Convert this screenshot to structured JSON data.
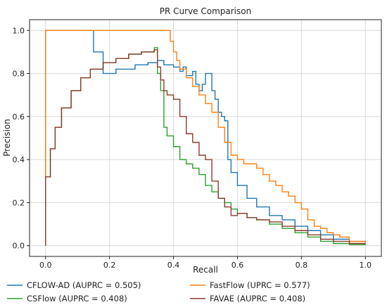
{
  "chart_data": {
    "type": "line",
    "title": "PR Curve Comparison",
    "xlabel": "Recall",
    "ylabel": "Precision",
    "xlim": [
      -0.05,
      1.05
    ],
    "ylim": [
      -0.05,
      1.05
    ],
    "xticks": [
      0.0,
      0.2,
      0.4,
      0.6,
      0.8,
      1.0
    ],
    "yticks": [
      0.0,
      0.2,
      0.4,
      0.6,
      0.8,
      1.0
    ],
    "grid": true,
    "legend_position": "bottom, outside plot",
    "series": [
      {
        "name": "CFLOW-AD (AUPRC = 0.505)",
        "color": "#1f77b4",
        "step": true,
        "x": [
          0.0,
          0.0,
          0.15,
          0.15,
          0.18,
          0.18,
          0.22,
          0.28,
          0.32,
          0.35,
          0.37,
          0.4,
          0.42,
          0.43,
          0.44,
          0.46,
          0.47,
          0.48,
          0.49,
          0.5,
          0.52,
          0.53,
          0.54,
          0.55,
          0.56,
          0.57,
          0.58,
          0.6,
          0.63,
          0.66,
          0.7,
          0.74,
          0.78,
          0.82,
          0.86,
          0.9,
          0.95,
          1.0
        ],
        "y": [
          0.0,
          1.0,
          1.0,
          0.9,
          0.9,
          0.8,
          0.82,
          0.84,
          0.85,
          0.86,
          0.84,
          0.83,
          0.81,
          0.83,
          0.79,
          0.81,
          0.75,
          0.72,
          0.75,
          0.8,
          0.72,
          0.68,
          0.62,
          0.6,
          0.58,
          0.4,
          0.34,
          0.28,
          0.22,
          0.18,
          0.14,
          0.12,
          0.09,
          0.07,
          0.05,
          0.03,
          0.02,
          0.01
        ]
      },
      {
        "name": "FastFlow (UPRC = 0.577)",
        "color": "#ff7f0e",
        "step": true,
        "x": [
          0.0,
          0.0,
          0.39,
          0.39,
          0.4,
          0.41,
          0.42,
          0.44,
          0.46,
          0.48,
          0.5,
          0.52,
          0.54,
          0.56,
          0.58,
          0.6,
          0.62,
          0.64,
          0.66,
          0.68,
          0.7,
          0.72,
          0.74,
          0.76,
          0.78,
          0.8,
          0.82,
          0.84,
          0.86,
          0.88,
          0.9,
          0.92,
          0.95,
          1.0
        ],
        "y": [
          0.0,
          1.0,
          1.0,
          0.95,
          0.9,
          0.86,
          0.82,
          0.78,
          0.74,
          0.7,
          0.66,
          0.62,
          0.55,
          0.48,
          0.42,
          0.4,
          0.38,
          0.38,
          0.36,
          0.33,
          0.3,
          0.28,
          0.25,
          0.23,
          0.2,
          0.17,
          0.12,
          0.09,
          0.08,
          0.06,
          0.05,
          0.04,
          0.02,
          0.01
        ]
      },
      {
        "name": "CSFlow (AUPRC = 0.408)",
        "color": "#2ca02c",
        "step": true,
        "x": [
          0.0,
          0.0,
          0.015,
          0.03,
          0.05,
          0.08,
          0.11,
          0.14,
          0.18,
          0.22,
          0.26,
          0.3,
          0.34,
          0.35,
          0.36,
          0.37,
          0.38,
          0.4,
          0.42,
          0.44,
          0.46,
          0.48,
          0.5,
          0.52,
          0.54,
          0.56,
          0.58,
          0.6,
          0.63,
          0.66,
          0.7,
          0.74,
          0.78,
          0.82,
          0.86,
          0.9,
          0.95,
          1.0
        ],
        "y": [
          0.0,
          0.32,
          0.45,
          0.55,
          0.64,
          0.72,
          0.78,
          0.82,
          0.85,
          0.87,
          0.89,
          0.9,
          0.92,
          0.8,
          0.72,
          0.55,
          0.51,
          0.46,
          0.4,
          0.38,
          0.36,
          0.33,
          0.28,
          0.25,
          0.22,
          0.2,
          0.17,
          0.15,
          0.13,
          0.12,
          0.1,
          0.08,
          0.06,
          0.04,
          0.02,
          0.01,
          0.005,
          0.004
        ]
      },
      {
        "name": "FAVAE (AUPRC = 0.408)",
        "color": "#8c3b2e",
        "step": true,
        "x": [
          0.0,
          0.0,
          0.015,
          0.03,
          0.05,
          0.08,
          0.11,
          0.14,
          0.18,
          0.22,
          0.26,
          0.3,
          0.34,
          0.35,
          0.36,
          0.37,
          0.38,
          0.4,
          0.42,
          0.44,
          0.46,
          0.48,
          0.5,
          0.52,
          0.54,
          0.56,
          0.58,
          0.6,
          0.63,
          0.66,
          0.7,
          0.74,
          0.78,
          0.82,
          0.86,
          0.9,
          0.95,
          1.0
        ],
        "y": [
          0.0,
          0.32,
          0.45,
          0.55,
          0.64,
          0.72,
          0.78,
          0.82,
          0.85,
          0.87,
          0.89,
          0.9,
          0.91,
          0.83,
          0.77,
          0.72,
          0.7,
          0.68,
          0.6,
          0.52,
          0.48,
          0.42,
          0.4,
          0.3,
          0.22,
          0.18,
          0.14,
          0.15,
          0.13,
          0.12,
          0.11,
          0.09,
          0.07,
          0.05,
          0.03,
          0.02,
          0.01,
          0.01
        ]
      }
    ]
  }
}
